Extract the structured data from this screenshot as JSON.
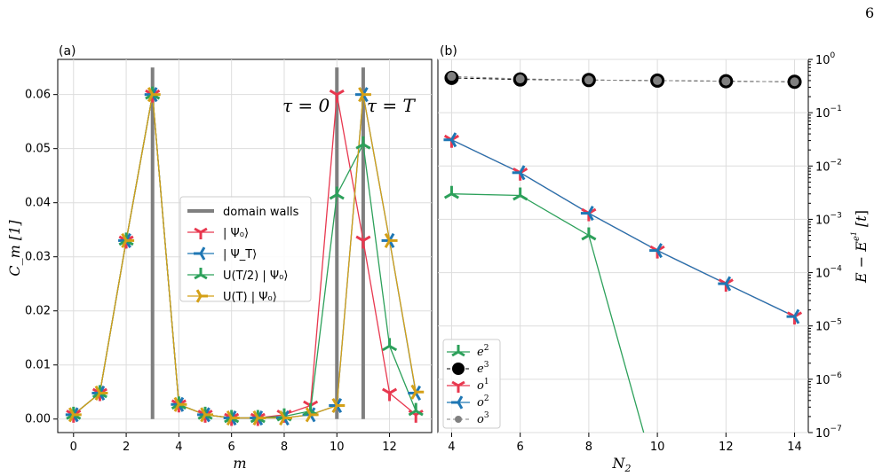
{
  "page_number": "6",
  "chart_data": [
    {
      "panel": "(a)",
      "type": "line",
      "xlabel": "m",
      "ylabel": "C_m   [1]",
      "xlim": [
        -0.6,
        13.6
      ],
      "ylim": [
        -0.0025,
        0.0665
      ],
      "xticks": [
        0,
        2,
        4,
        6,
        8,
        10,
        12
      ],
      "yticks": [
        0.0,
        0.01,
        0.02,
        0.03,
        0.04,
        0.05,
        0.06
      ],
      "ytick_labels": [
        "0.00",
        "0.01",
        "0.02",
        "0.03",
        "0.04",
        "0.05",
        "0.06"
      ],
      "grid": true,
      "legend": "center",
      "domain_walls": {
        "name": "domain walls",
        "color": "#7f7f7f",
        "x": [
          3,
          10,
          11
        ],
        "y_range": [
          0,
          0.065
        ]
      },
      "annotations": [
        {
          "text": "τ = 0",
          "x": 8.75,
          "y": 0.06
        },
        {
          "text": "τ = T",
          "x": 11.75,
          "y": 0.06
        }
      ],
      "x": [
        0,
        1,
        2,
        3,
        4,
        5,
        6,
        7,
        8,
        9,
        10,
        11,
        12,
        13
      ],
      "series": [
        {
          "name": "| Ψ₀⟩",
          "color": "#e8384f",
          "rot": 0,
          "values": [
            0.0008,
            0.0048,
            0.033,
            0.06,
            0.0027,
            0.0008,
            0.0002,
            0.0002,
            0.0008,
            0.0025,
            0.06,
            0.033,
            0.0048,
            0.0008
          ]
        },
        {
          "name": "| Ψ_T⟩",
          "color": "#1f77b4",
          "rot": 90,
          "values": [
            0.0008,
            0.0048,
            0.033,
            0.06,
            0.0027,
            0.0008,
            0.0002,
            0.0002,
            0.0002,
            0.0008,
            0.0025,
            0.06,
            0.033,
            0.0048
          ]
        },
        {
          "name": "U(T/2) | Ψ₀⟩",
          "color": "#2ca05a",
          "rot": 180,
          "values": [
            0.0008,
            0.0048,
            0.033,
            0.06,
            0.0027,
            0.0008,
            0.0002,
            0.0002,
            0.0005,
            0.0015,
            0.0415,
            0.0508,
            0.0135,
            0.0015
          ]
        },
        {
          "name": "U(T) | Ψ₀⟩",
          "color": "#d4a017",
          "rot": 270,
          "values": [
            0.0008,
            0.0048,
            0.033,
            0.06,
            0.0027,
            0.0008,
            0.0002,
            0.0002,
            0.0002,
            0.0008,
            0.0025,
            0.06,
            0.033,
            0.005
          ]
        }
      ]
    },
    {
      "panel": "(b)",
      "type": "line",
      "xlabel": "N_2",
      "ylabel": "E − E^{e¹}   [t]",
      "yscale": "log",
      "yaxis_side": "right",
      "xlim": [
        3.6,
        14.4
      ],
      "ylim_log10": [
        -7,
        0
      ],
      "xticks": [
        4,
        6,
        8,
        10,
        12,
        14
      ],
      "ytick_labels": [
        "10",
        "10",
        "10",
        "10",
        "10",
        "10",
        "10",
        "10"
      ],
      "ytick_exponents": [
        "0",
        "−1",
        "−2",
        "−3",
        "−4",
        "−5",
        "−6",
        "−7"
      ],
      "grid": true,
      "legend": "lower-left",
      "series": [
        {
          "name": "e",
          "sup": "2",
          "marker": "tri",
          "rot": 180,
          "color": "#2ca05a",
          "x": [
            4,
            6,
            8,
            9.6
          ],
          "values": [
            0.003,
            0.0028,
            0.0005,
            1e-07
          ]
        },
        {
          "name": "e",
          "sup": "3",
          "marker": "circle",
          "color": "#000000",
          "x": [
            4,
            6,
            8,
            10,
            12,
            14
          ],
          "values": [
            0.45,
            0.42,
            0.41,
            0.4,
            0.39,
            0.38
          ]
        },
        {
          "name": "o",
          "sup": "1",
          "marker": "tri",
          "rot": 0,
          "color": "#e8384f",
          "x": [
            4,
            6,
            8,
            10,
            12,
            14
          ],
          "values": [
            0.031,
            0.0075,
            0.0013,
            0.00026,
            6.2e-05,
            1.5e-05
          ]
        },
        {
          "name": "o",
          "sup": "2",
          "marker": "tri",
          "rot": 90,
          "color": "#1f77b4",
          "x": [
            4,
            6,
            8,
            10,
            12,
            14
          ],
          "values": [
            0.031,
            0.0075,
            0.0013,
            0.00026,
            6.2e-05,
            1.5e-05
          ]
        },
        {
          "name": "o",
          "sup": "3",
          "marker": "dot",
          "color": "#808080",
          "x": [
            4,
            6,
            8,
            10,
            12,
            14
          ],
          "values": [
            0.48,
            0.43,
            0.41,
            0.4,
            0.39,
            0.38
          ]
        }
      ]
    }
  ]
}
